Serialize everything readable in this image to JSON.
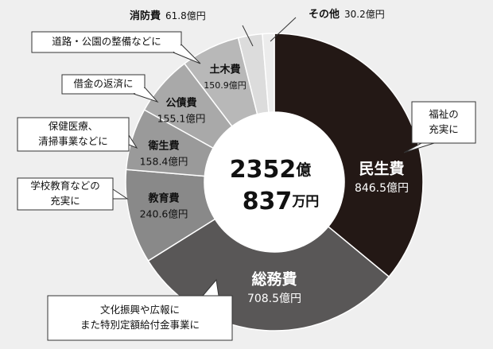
{
  "chart_data": {
    "type": "pie",
    "categories": [
      "民生費",
      "総務費",
      "教育費",
      "衛生費",
      "公債費",
      "土木費",
      "消防費",
      "その他"
    ],
    "values": [
      846.5,
      708.5,
      240.6,
      158.4,
      155.1,
      150.9,
      61.8,
      30.2
    ],
    "value_labels": [
      "846.5億円",
      "708.5億円",
      "240.6億円",
      "158.4億円",
      "155.1億円",
      "150.9億円",
      "61.8億円",
      "30.2億円"
    ],
    "colors": [
      "#231815",
      "#595757",
      "#898989",
      "#9a9a9a",
      "#a9a9a9",
      "#b8b8b8",
      "#dcdcdc",
      "#ececec"
    ],
    "center_text": [
      "2352",
      "億",
      "837",
      "万円"
    ],
    "annotations": [
      [
        "福祉の",
        "充実に"
      ],
      [
        "文化振興や広報に",
        "また特別定額給付金事業に"
      ],
      [
        "学校教育などの",
        "充実に"
      ],
      [
        "保健医療、",
        "清掃事業などに"
      ],
      [
        "借金の返済に"
      ],
      [
        "道路・公園の整備などに"
      ]
    ]
  }
}
